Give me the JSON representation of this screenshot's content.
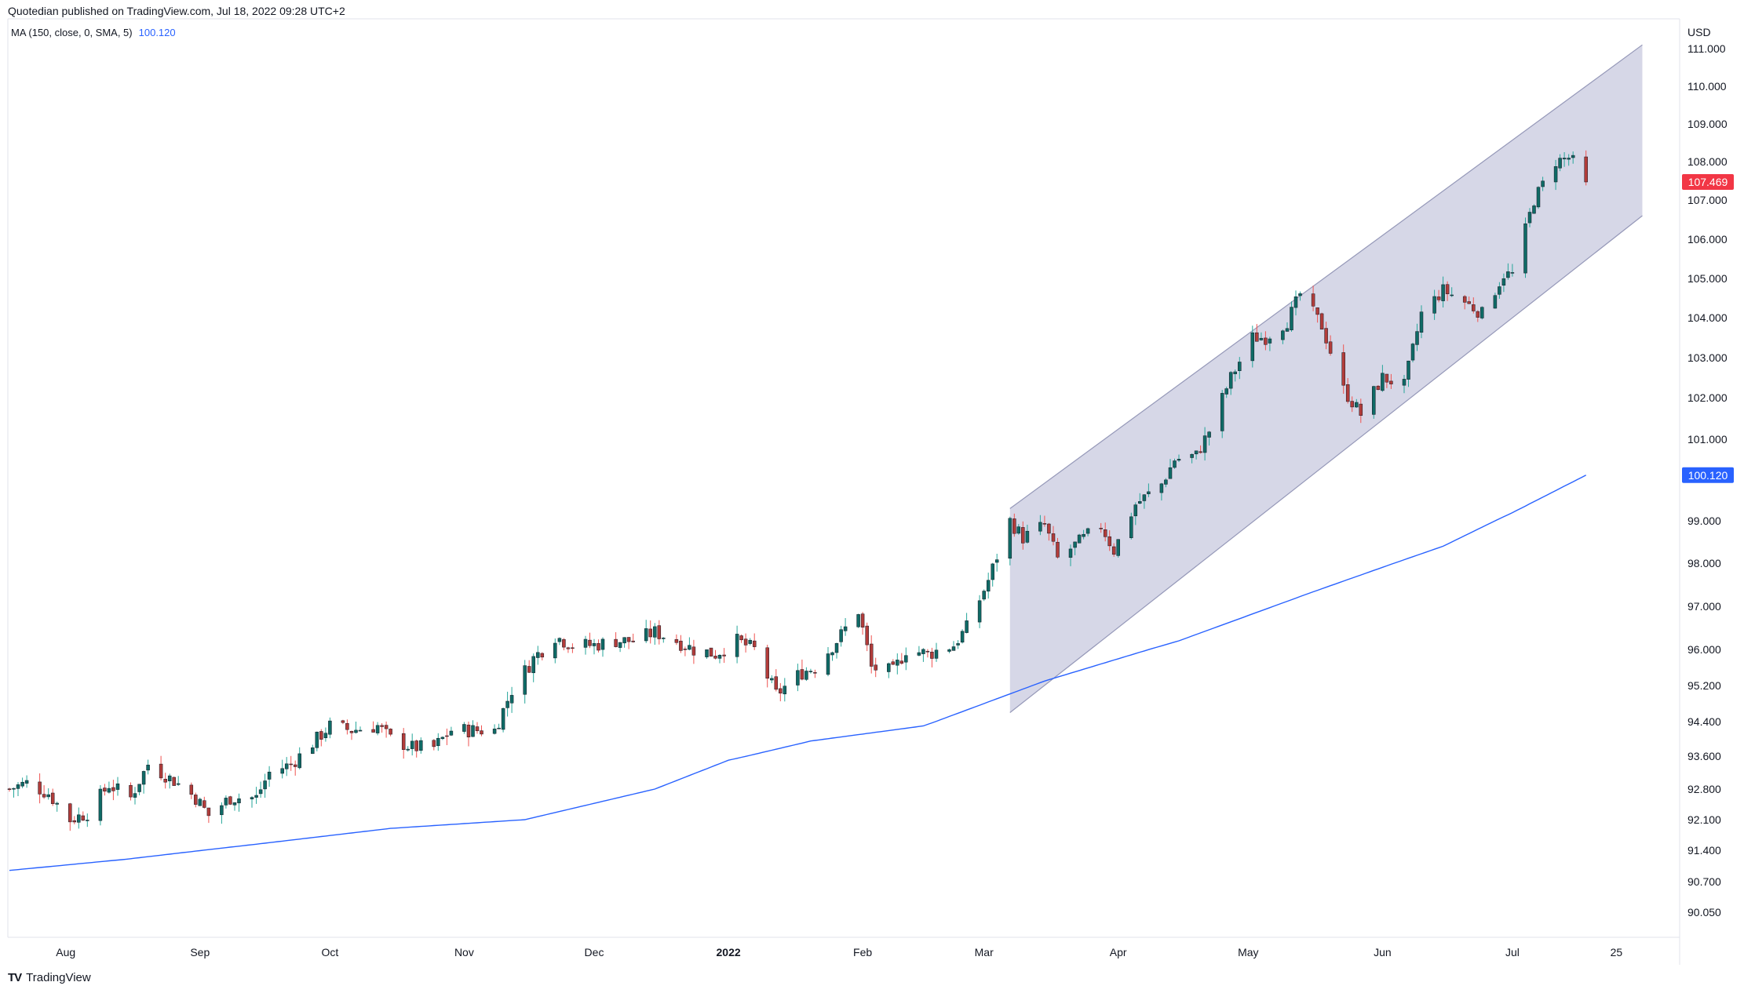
{
  "header": {
    "published": "Quotedian published on TradingView.com, Jul 18, 2022 09:28 UTC+2"
  },
  "indicator": {
    "label": "MA (150, close, 0, SMA, 5)",
    "value": "100.120"
  },
  "watermark": {
    "text": "TradingView",
    "logo": "TV"
  },
  "colors": {
    "up": "#26a69a",
    "down": "#ef5350",
    "candle_body_up": "#0f6b66",
    "candle_body_down": "#b23c3a",
    "ma": "#2962ff",
    "channel": "#c8cadf",
    "price_badge": "#f23645",
    "ma_badge": "#2962ff"
  },
  "chart_data": {
    "type": "candlestick",
    "currency": "USD",
    "title": "",
    "y_ticks": [
      "111.000",
      "110.000",
      "109.000",
      "108.000",
      "107.000",
      "106.000",
      "105.000",
      "104.000",
      "103.000",
      "102.000",
      "101.000",
      "99.000",
      "98.000",
      "97.000",
      "96.000",
      "95.200",
      "94.400",
      "93.600",
      "92.800",
      "92.100",
      "91.400",
      "90.700",
      "90.050"
    ],
    "y_tick_values": [
      111,
      110,
      109,
      108,
      107,
      106,
      105,
      104,
      103,
      102,
      101,
      99,
      98,
      97,
      96,
      95.2,
      94.4,
      93.6,
      92.8,
      92.1,
      91.4,
      90.7,
      90.05
    ],
    "x_ticks": [
      {
        "label": "Aug",
        "date": "2021-08-01",
        "bold": false
      },
      {
        "label": "Sep",
        "date": "2021-09-01",
        "bold": false
      },
      {
        "label": "Oct",
        "date": "2021-10-01",
        "bold": false
      },
      {
        "label": "Nov",
        "date": "2021-11-01",
        "bold": false
      },
      {
        "label": "Dec",
        "date": "2021-12-01",
        "bold": false
      },
      {
        "label": "2022",
        "date": "2022-01-01",
        "bold": true
      },
      {
        "label": "Feb",
        "date": "2022-02-01",
        "bold": false
      },
      {
        "label": "Mar",
        "date": "2022-03-01",
        "bold": false
      },
      {
        "label": "Apr",
        "date": "2022-04-01",
        "bold": false
      },
      {
        "label": "May",
        "date": "2022-05-01",
        "bold": false
      },
      {
        "label": "Jun",
        "date": "2022-06-01",
        "bold": false
      },
      {
        "label": "Jul",
        "date": "2022-07-01",
        "bold": false
      },
      {
        "label": "25",
        "date": "2022-07-25",
        "bold": false
      }
    ],
    "last_price": "107.469",
    "ma_last": "100.120",
    "close_points": [
      [
        "2021-07-19",
        92.8
      ],
      [
        "2021-07-23",
        92.95
      ],
      [
        "2021-07-28",
        92.7
      ],
      [
        "2021-08-02",
        92.1
      ],
      [
        "2021-08-06",
        92.25
      ],
      [
        "2021-08-11",
        92.9
      ],
      [
        "2021-08-16",
        92.6
      ],
      [
        "2021-08-20",
        93.4
      ],
      [
        "2021-08-26",
        93.0
      ],
      [
        "2021-08-31",
        92.6
      ],
      [
        "2021-09-03",
        92.2
      ],
      [
        "2021-09-08",
        92.6
      ],
      [
        "2021-09-14",
        92.6
      ],
      [
        "2021-09-17",
        93.2
      ],
      [
        "2021-09-22",
        93.4
      ],
      [
        "2021-09-28",
        94.0
      ],
      [
        "2021-10-01",
        94.3
      ],
      [
        "2021-10-06",
        94.2
      ],
      [
        "2021-10-12",
        94.3
      ],
      [
        "2021-10-15",
        94.0
      ],
      [
        "2021-10-20",
        93.8
      ],
      [
        "2021-10-25",
        93.8
      ],
      [
        "2021-10-29",
        94.2
      ],
      [
        "2021-11-03",
        94.2
      ],
      [
        "2021-11-08",
        94.2
      ],
      [
        "2021-11-12",
        95.1
      ],
      [
        "2021-11-17",
        95.8
      ],
      [
        "2021-11-22",
        96.3
      ],
      [
        "2021-11-26",
        96.1
      ],
      [
        "2021-12-01",
        96.1
      ],
      [
        "2021-12-06",
        96.2
      ],
      [
        "2021-12-10",
        96.2
      ],
      [
        "2021-12-15",
        96.4
      ],
      [
        "2021-12-20",
        96.2
      ],
      [
        "2021-12-24",
        96.0
      ],
      [
        "2021-12-29",
        95.9
      ],
      [
        "2022-01-03",
        96.2
      ],
      [
        "2022-01-07",
        96.0
      ],
      [
        "2022-01-12",
        95.0
      ],
      [
        "2022-01-18",
        95.5
      ],
      [
        "2022-01-21",
        95.6
      ],
      [
        "2022-01-26",
        96.2
      ],
      [
        "2022-01-31",
        96.9
      ],
      [
        "2022-02-03",
        95.6
      ],
      [
        "2022-02-08",
        95.5
      ],
      [
        "2022-02-11",
        96.0
      ],
      [
        "2022-02-16",
        95.9
      ],
      [
        "2022-02-22",
        96.1
      ],
      [
        "2022-02-25",
        96.5
      ],
      [
        "2022-03-02",
        97.6
      ],
      [
        "2022-03-07",
        99.0
      ],
      [
        "2022-03-10",
        98.6
      ],
      [
        "2022-03-15",
        98.9
      ],
      [
        "2022-03-18",
        98.1
      ],
      [
        "2022-03-23",
        98.5
      ],
      [
        "2022-03-28",
        98.9
      ],
      [
        "2022-03-31",
        98.3
      ],
      [
        "2022-04-05",
        99.4
      ],
      [
        "2022-04-11",
        99.9
      ],
      [
        "2022-04-14",
        100.5
      ],
      [
        "2022-04-19",
        100.6
      ],
      [
        "2022-04-22",
        101.2
      ],
      [
        "2022-04-27",
        102.5
      ],
      [
        "2022-05-02",
        103.5
      ],
      [
        "2022-05-05",
        103.5
      ],
      [
        "2022-05-10",
        103.9
      ],
      [
        "2022-05-13",
        104.6
      ],
      [
        "2022-05-18",
        103.8
      ],
      [
        "2022-05-23",
        102.2
      ],
      [
        "2022-05-27",
        101.6
      ],
      [
        "2022-06-01",
        102.5
      ],
      [
        "2022-06-06",
        102.3
      ],
      [
        "2022-06-10",
        104.1
      ],
      [
        "2022-06-15",
        104.7
      ],
      [
        "2022-06-20",
        104.4
      ],
      [
        "2022-06-24",
        104.1
      ],
      [
        "2022-06-29",
        105.1
      ],
      [
        "2022-07-01",
        105.1
      ],
      [
        "2022-07-06",
        107.0
      ],
      [
        "2022-07-11",
        108.0
      ],
      [
        "2022-07-14",
        108.1
      ],
      [
        "2022-07-15",
        108.0
      ],
      [
        "2022-07-18",
        107.469
      ]
    ],
    "ma_points": [
      [
        "2021-07-19",
        90.95
      ],
      [
        "2021-08-15",
        91.2
      ],
      [
        "2021-09-15",
        91.55
      ],
      [
        "2021-10-15",
        91.9
      ],
      [
        "2021-11-15",
        92.1
      ],
      [
        "2021-12-15",
        92.8
      ],
      [
        "2022-01-01",
        93.5
      ],
      [
        "2022-01-20",
        93.95
      ],
      [
        "2022-02-15",
        94.3
      ],
      [
        "2022-03-15",
        95.3
      ],
      [
        "2022-04-15",
        96.2
      ],
      [
        "2022-05-15",
        97.3
      ],
      [
        "2022-06-15",
        98.4
      ],
      [
        "2022-07-01",
        99.2
      ],
      [
        "2022-07-18",
        100.12
      ]
    ],
    "channel": {
      "upper": [
        [
          "2022-03-07",
          99.3
        ],
        [
          "2022-07-31",
          111.1
        ]
      ],
      "lower": [
        [
          "2022-03-07",
          94.6
        ],
        [
          "2022-07-31",
          106.6
        ]
      ]
    }
  }
}
